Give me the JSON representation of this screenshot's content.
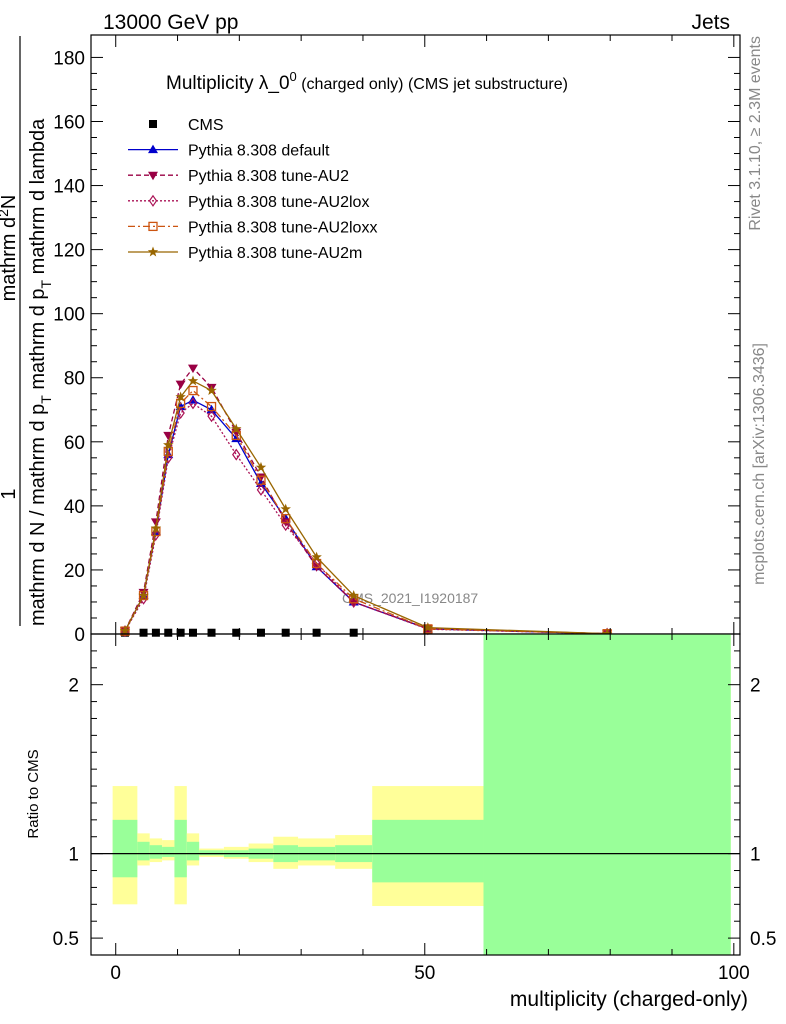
{
  "header": {
    "left": "13000 GeV pp",
    "right": "Jets"
  },
  "side_labels": {
    "rivet": "Rivet 3.1.10, ≥ 2.3M events",
    "mcplots": "mcplots.cern.ch [arXiv:1306.3436]"
  },
  "chart_data": [
    {
      "type": "line",
      "title_main": "Multiplicity λ_0",
      "title_sup": "0",
      "title_rest": " (charged only) (CMS jet substructure)",
      "watermark": "CMS_2021_I1920187",
      "ylabel_top": "1",
      "ylabel_num": "mathrm d",
      "ylabel_num_sup": "2",
      "ylabel_num_rest": "N",
      "ylabel_den_a": "mathrm d N / mathrm d p",
      "ylabel_den_sub1": "T",
      "ylabel_den_b": " mathrm d p",
      "ylabel_den_sub2": "T",
      "ylabel_den_c": " mathrm d lambda",
      "ylim": [
        0,
        187
      ],
      "xlim": [
        -4,
        101
      ],
      "yticks": [
        "0",
        "20",
        "40",
        "60",
        "80",
        "100",
        "120",
        "140",
        "160",
        "180"
      ],
      "ytick_values": [
        0,
        20,
        40,
        60,
        80,
        100,
        120,
        140,
        160,
        180
      ],
      "legend_position": "top-left",
      "series": [
        {
          "name": "CMS",
          "color": "#000000",
          "marker": "square",
          "dash": "none",
          "x": [
            1.5,
            4.5,
            6.5,
            8.5,
            10.5,
            12.5,
            15.5,
            19.5,
            23.5,
            27.5,
            32.5,
            38.5
          ],
          "y": [
            0.4,
            0.4,
            0.4,
            0.4,
            0.4,
            0.4,
            0.4,
            0.4,
            0.4,
            0.4,
            0.4,
            0.4
          ]
        },
        {
          "name": "Pythia 8.308 default",
          "color": "#0000cc",
          "marker": "triangle-up",
          "dash": "solid",
          "x": [
            1.5,
            4.5,
            6.5,
            8.5,
            10.5,
            12.5,
            15.5,
            19.5,
            23.5,
            27.5,
            32.5,
            38.5,
            50.5,
            79.5
          ],
          "y": [
            1.0,
            12,
            32,
            56,
            71,
            73,
            70,
            61,
            47,
            36,
            21,
            10,
            1.6,
            0.1
          ]
        },
        {
          "name": "Pythia 8.308 tune-AU2",
          "color": "#990044",
          "marker": "triangle-down",
          "dash": "dashed",
          "x": [
            1.5,
            4.5,
            6.5,
            8.5,
            10.5,
            12.5,
            15.5,
            19.5,
            23.5,
            27.5,
            32.5,
            38.5,
            50.5,
            79.5
          ],
          "y": [
            1.0,
            13,
            35,
            62,
            78,
            83,
            77,
            63,
            49,
            35,
            21,
            10,
            1.7,
            0.1
          ]
        },
        {
          "name": "Pythia 8.308 tune-AU2lox",
          "color": "#aa1155",
          "marker": "diamond-open",
          "dash": "dotted",
          "x": [
            1.5,
            4.5,
            6.5,
            8.5,
            10.5,
            12.5,
            15.5,
            19.5,
            23.5,
            27.5,
            32.5,
            38.5,
            50.5,
            79.5
          ],
          "y": [
            0.9,
            11,
            31,
            55,
            69,
            72,
            68,
            56,
            45,
            34,
            22,
            10,
            1.5,
            0.1
          ]
        },
        {
          "name": "Pythia 8.308 tune-AU2loxx",
          "color": "#cc5511",
          "marker": "square-open",
          "dash": "dashdot",
          "x": [
            1.5,
            4.5,
            6.5,
            8.5,
            10.5,
            12.5,
            15.5,
            19.5,
            23.5,
            27.5,
            32.5,
            38.5,
            50.5,
            79.5
          ],
          "y": [
            0.9,
            12,
            32,
            57,
            72,
            76,
            71,
            62,
            48,
            36,
            22,
            11,
            1.6,
            0.1
          ]
        },
        {
          "name": "Pythia 8.308 tune-AU2m",
          "color": "#996600",
          "marker": "star",
          "dash": "solid",
          "x": [
            1.5,
            4.5,
            6.5,
            8.5,
            10.5,
            12.5,
            15.5,
            19.5,
            23.5,
            27.5,
            32.5,
            38.5,
            50.5,
            79.5
          ],
          "y": [
            1.0,
            12,
            33,
            59,
            74,
            79,
            76,
            64,
            52,
            39,
            24,
            12,
            2.0,
            0.1
          ]
        }
      ]
    },
    {
      "type": "area",
      "ylabel": "Ratio to CMS",
      "xlabel": "multiplicity (charged-only)",
      "ylim": [
        0.4,
        2.3
      ],
      "xlim": [
        -4,
        101
      ],
      "yticks": [
        "0.5",
        "1",
        "2"
      ],
      "ytick_values": [
        0.5,
        1,
        2
      ],
      "xticks": [
        "0",
        "50",
        "100"
      ],
      "xtick_values": [
        0,
        50,
        100
      ],
      "reference_line": 1,
      "bands": {
        "stat_color": "#99ff99",
        "total_color": "#ffff99",
        "bins": [
          {
            "x0": -0.5,
            "x1": 3.5,
            "tot": [
              0.7,
              1.4
            ],
            "stat": [
              0.86,
              1.2
            ]
          },
          {
            "x0": 3.5,
            "x1": 5.5,
            "tot": [
              0.93,
              1.12
            ],
            "stat": [
              0.96,
              1.07
            ]
          },
          {
            "x0": 5.5,
            "x1": 7.5,
            "tot": [
              0.95,
              1.09
            ],
            "stat": [
              0.97,
              1.05
            ]
          },
          {
            "x0": 7.5,
            "x1": 9.5,
            "tot": [
              0.96,
              1.08
            ],
            "stat": [
              0.98,
              1.04
            ]
          },
          {
            "x0": 9.5,
            "x1": 11.5,
            "tot": [
              0.7,
              1.4
            ],
            "stat": [
              0.86,
              1.2
            ]
          },
          {
            "x0": 11.5,
            "x1": 13.5,
            "tot": [
              0.93,
              1.12
            ],
            "stat": [
              0.96,
              1.07
            ]
          },
          {
            "x0": 13.5,
            "x1": 17.5,
            "tot": [
              0.98,
              1.03
            ],
            "stat": [
              0.99,
              1.02
            ]
          },
          {
            "x0": 17.5,
            "x1": 21.5,
            "tot": [
              0.97,
              1.04
            ],
            "stat": [
              0.98,
              1.02
            ]
          },
          {
            "x0": 21.5,
            "x1": 25.5,
            "tot": [
              0.95,
              1.06
            ],
            "stat": [
              0.97,
              1.03
            ]
          },
          {
            "x0": 25.5,
            "x1": 29.5,
            "tot": [
              0.91,
              1.1
            ],
            "stat": [
              0.95,
              1.05
            ]
          },
          {
            "x0": 29.5,
            "x1": 35.5,
            "tot": [
              0.93,
              1.09
            ],
            "stat": [
              0.96,
              1.04
            ]
          },
          {
            "x0": 35.5,
            "x1": 41.5,
            "tot": [
              0.91,
              1.11
            ],
            "stat": [
              0.95,
              1.05
            ]
          },
          {
            "x0": 41.5,
            "x1": 59.5,
            "tot": [
              0.69,
              1.4
            ],
            "stat": [
              0.83,
              1.2
            ]
          },
          {
            "x0": 59.5,
            "x1": 99.5,
            "tot": [
              0.3,
              2.5
            ],
            "stat": [
              0.3,
              2.5
            ]
          }
        ]
      }
    }
  ]
}
